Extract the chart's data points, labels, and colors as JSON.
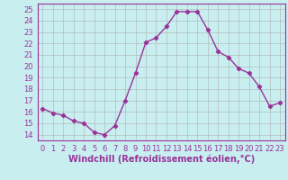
{
  "x": [
    0,
    1,
    2,
    3,
    4,
    5,
    6,
    7,
    8,
    9,
    10,
    11,
    12,
    13,
    14,
    15,
    16,
    17,
    18,
    19,
    20,
    21,
    22,
    23
  ],
  "y": [
    16.3,
    15.9,
    15.7,
    15.2,
    15.0,
    14.2,
    14.0,
    14.8,
    17.0,
    19.4,
    22.1,
    22.5,
    23.5,
    24.8,
    24.8,
    24.8,
    23.2,
    21.3,
    20.8,
    19.8,
    19.4,
    18.2,
    16.5,
    16.8
  ],
  "line_color": "#993399",
  "marker": "D",
  "marker_size": 2.2,
  "linewidth": 1.0,
  "xlabel": "Windchill (Refroidissement éolien,°C)",
  "xlabel_fontsize": 7.0,
  "bg_color": "#c8eef0",
  "grid_color": "#aaaaaa",
  "ylim": [
    13.5,
    25.5
  ],
  "xlim": [
    -0.5,
    23.5
  ],
  "yticks": [
    14,
    15,
    16,
    17,
    18,
    19,
    20,
    21,
    22,
    23,
    24,
    25
  ],
  "xticks": [
    0,
    1,
    2,
    3,
    4,
    5,
    6,
    7,
    8,
    9,
    10,
    11,
    12,
    13,
    14,
    15,
    16,
    17,
    18,
    19,
    20,
    21,
    22,
    23
  ],
  "tick_fontsize": 6.0,
  "spine_color": "#993399"
}
